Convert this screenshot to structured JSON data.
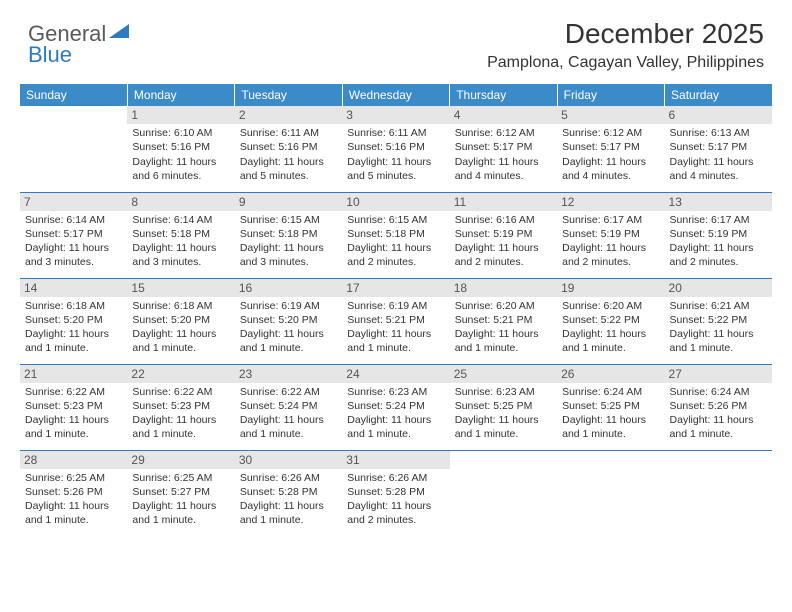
{
  "brand": {
    "part1": "General",
    "part2": "Blue"
  },
  "title": "December 2025",
  "location": "Pamplona, Cagayan Valley, Philippines",
  "colors": {
    "header_bg": "#3b8bc8",
    "header_text": "#ffffff",
    "daynum_bg": "#e6e6e6",
    "border": "#2f7bbf",
    "brand_blue": "#2f7bbf"
  },
  "day_headers": [
    "Sunday",
    "Monday",
    "Tuesday",
    "Wednesday",
    "Thursday",
    "Friday",
    "Saturday"
  ],
  "weeks": [
    [
      null,
      {
        "n": "1",
        "sr": "Sunrise: 6:10 AM",
        "ss": "Sunset: 5:16 PM",
        "dl": "Daylight: 11 hours and 6 minutes."
      },
      {
        "n": "2",
        "sr": "Sunrise: 6:11 AM",
        "ss": "Sunset: 5:16 PM",
        "dl": "Daylight: 11 hours and 5 minutes."
      },
      {
        "n": "3",
        "sr": "Sunrise: 6:11 AM",
        "ss": "Sunset: 5:16 PM",
        "dl": "Daylight: 11 hours and 5 minutes."
      },
      {
        "n": "4",
        "sr": "Sunrise: 6:12 AM",
        "ss": "Sunset: 5:17 PM",
        "dl": "Daylight: 11 hours and 4 minutes."
      },
      {
        "n": "5",
        "sr": "Sunrise: 6:12 AM",
        "ss": "Sunset: 5:17 PM",
        "dl": "Daylight: 11 hours and 4 minutes."
      },
      {
        "n": "6",
        "sr": "Sunrise: 6:13 AM",
        "ss": "Sunset: 5:17 PM",
        "dl": "Daylight: 11 hours and 4 minutes."
      }
    ],
    [
      {
        "n": "7",
        "sr": "Sunrise: 6:14 AM",
        "ss": "Sunset: 5:17 PM",
        "dl": "Daylight: 11 hours and 3 minutes."
      },
      {
        "n": "8",
        "sr": "Sunrise: 6:14 AM",
        "ss": "Sunset: 5:18 PM",
        "dl": "Daylight: 11 hours and 3 minutes."
      },
      {
        "n": "9",
        "sr": "Sunrise: 6:15 AM",
        "ss": "Sunset: 5:18 PM",
        "dl": "Daylight: 11 hours and 3 minutes."
      },
      {
        "n": "10",
        "sr": "Sunrise: 6:15 AM",
        "ss": "Sunset: 5:18 PM",
        "dl": "Daylight: 11 hours and 2 minutes."
      },
      {
        "n": "11",
        "sr": "Sunrise: 6:16 AM",
        "ss": "Sunset: 5:19 PM",
        "dl": "Daylight: 11 hours and 2 minutes."
      },
      {
        "n": "12",
        "sr": "Sunrise: 6:17 AM",
        "ss": "Sunset: 5:19 PM",
        "dl": "Daylight: 11 hours and 2 minutes."
      },
      {
        "n": "13",
        "sr": "Sunrise: 6:17 AM",
        "ss": "Sunset: 5:19 PM",
        "dl": "Daylight: 11 hours and 2 minutes."
      }
    ],
    [
      {
        "n": "14",
        "sr": "Sunrise: 6:18 AM",
        "ss": "Sunset: 5:20 PM",
        "dl": "Daylight: 11 hours and 1 minute."
      },
      {
        "n": "15",
        "sr": "Sunrise: 6:18 AM",
        "ss": "Sunset: 5:20 PM",
        "dl": "Daylight: 11 hours and 1 minute."
      },
      {
        "n": "16",
        "sr": "Sunrise: 6:19 AM",
        "ss": "Sunset: 5:20 PM",
        "dl": "Daylight: 11 hours and 1 minute."
      },
      {
        "n": "17",
        "sr": "Sunrise: 6:19 AM",
        "ss": "Sunset: 5:21 PM",
        "dl": "Daylight: 11 hours and 1 minute."
      },
      {
        "n": "18",
        "sr": "Sunrise: 6:20 AM",
        "ss": "Sunset: 5:21 PM",
        "dl": "Daylight: 11 hours and 1 minute."
      },
      {
        "n": "19",
        "sr": "Sunrise: 6:20 AM",
        "ss": "Sunset: 5:22 PM",
        "dl": "Daylight: 11 hours and 1 minute."
      },
      {
        "n": "20",
        "sr": "Sunrise: 6:21 AM",
        "ss": "Sunset: 5:22 PM",
        "dl": "Daylight: 11 hours and 1 minute."
      }
    ],
    [
      {
        "n": "21",
        "sr": "Sunrise: 6:22 AM",
        "ss": "Sunset: 5:23 PM",
        "dl": "Daylight: 11 hours and 1 minute."
      },
      {
        "n": "22",
        "sr": "Sunrise: 6:22 AM",
        "ss": "Sunset: 5:23 PM",
        "dl": "Daylight: 11 hours and 1 minute."
      },
      {
        "n": "23",
        "sr": "Sunrise: 6:22 AM",
        "ss": "Sunset: 5:24 PM",
        "dl": "Daylight: 11 hours and 1 minute."
      },
      {
        "n": "24",
        "sr": "Sunrise: 6:23 AM",
        "ss": "Sunset: 5:24 PM",
        "dl": "Daylight: 11 hours and 1 minute."
      },
      {
        "n": "25",
        "sr": "Sunrise: 6:23 AM",
        "ss": "Sunset: 5:25 PM",
        "dl": "Daylight: 11 hours and 1 minute."
      },
      {
        "n": "26",
        "sr": "Sunrise: 6:24 AM",
        "ss": "Sunset: 5:25 PM",
        "dl": "Daylight: 11 hours and 1 minute."
      },
      {
        "n": "27",
        "sr": "Sunrise: 6:24 AM",
        "ss": "Sunset: 5:26 PM",
        "dl": "Daylight: 11 hours and 1 minute."
      }
    ],
    [
      {
        "n": "28",
        "sr": "Sunrise: 6:25 AM",
        "ss": "Sunset: 5:26 PM",
        "dl": "Daylight: 11 hours and 1 minute."
      },
      {
        "n": "29",
        "sr": "Sunrise: 6:25 AM",
        "ss": "Sunset: 5:27 PM",
        "dl": "Daylight: 11 hours and 1 minute."
      },
      {
        "n": "30",
        "sr": "Sunrise: 6:26 AM",
        "ss": "Sunset: 5:28 PM",
        "dl": "Daylight: 11 hours and 1 minute."
      },
      {
        "n": "31",
        "sr": "Sunrise: 6:26 AM",
        "ss": "Sunset: 5:28 PM",
        "dl": "Daylight: 11 hours and 2 minutes."
      },
      null,
      null,
      null
    ]
  ]
}
